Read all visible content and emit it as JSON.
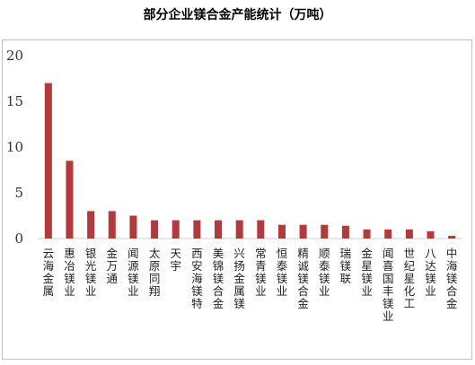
{
  "title": "部分企业镁合金产能统计（万吨）",
  "chart_data": {
    "type": "bar",
    "title": "部分企业镁合金产能统计（万吨）",
    "xlabel": "",
    "ylabel": "",
    "ylim": [
      0,
      20
    ],
    "yticks": [
      0,
      5,
      10,
      15,
      20
    ],
    "grid": false,
    "legend": "none",
    "bar_color": "#b5383b",
    "categories": [
      "云海金属",
      "惠冶镁业",
      "银光镁业",
      "金万通",
      "闻源镁业",
      "太原同翔",
      "天宇",
      "西安海镁特",
      "美锦镁合金",
      "兴扬金属镁",
      "常青镁业",
      "恒泰镁业",
      "精诚镁合金",
      "顺泰镁业",
      "瑞镁联",
      "金星镁业",
      "闻喜国丰镁业",
      "世纪星化工",
      "八达镁业",
      "中海镁合金"
    ],
    "values": [
      17,
      8.5,
      3,
      3,
      2.5,
      2,
      2,
      2,
      2,
      2,
      2,
      1.5,
      1.5,
      1.5,
      1.4,
      1,
      1,
      1,
      0.8,
      0.3
    ]
  }
}
